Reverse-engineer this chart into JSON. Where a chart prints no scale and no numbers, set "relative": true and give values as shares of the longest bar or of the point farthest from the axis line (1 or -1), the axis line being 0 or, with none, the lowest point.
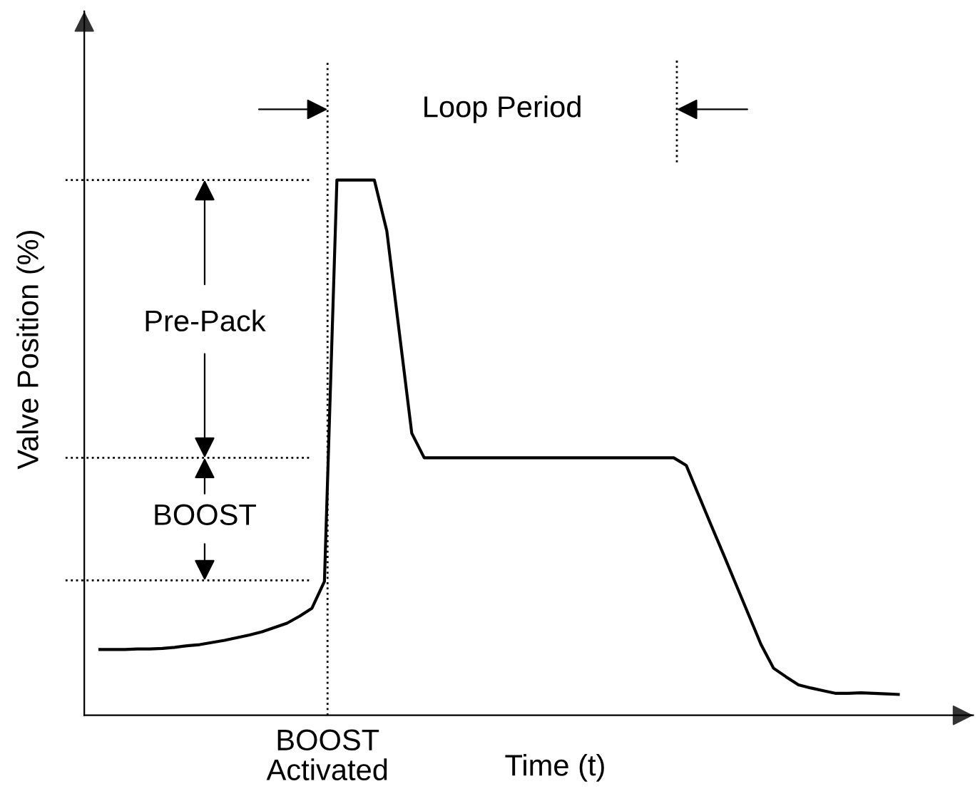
{
  "chart_data": {
    "type": "line",
    "relative": true,
    "xlabel": "Time (t)",
    "ylabel": "Valve Position (%)",
    "categories": [
      null,
      null,
      null,
      null,
      null,
      null,
      null,
      null,
      null,
      null,
      null,
      null,
      null,
      null,
      null,
      null,
      null,
      null,
      null,
      null,
      null,
      null,
      null,
      null,
      null,
      null,
      null,
      null,
      null,
      null,
      null,
      null,
      null,
      null,
      null,
      null,
      null,
      null,
      null,
      null,
      null,
      null,
      null,
      null,
      null,
      null,
      null,
      null,
      null,
      null,
      null,
      null,
      null,
      null,
      null,
      null,
      null,
      null,
      null,
      null,
      null,
      null,
      null,
      null,
      null
    ],
    "series": [
      {
        "color": "#000000",
        "values": [
          0.123,
          0.123,
          0.123,
          0.124,
          0.124,
          0.125,
          0.127,
          0.13,
          0.132,
          0.136,
          0.14,
          0.145,
          0.15,
          0.156,
          0.164,
          0.172,
          0.185,
          0.2,
          0.25,
          1,
          1,
          1,
          1,
          0.905,
          0.716,
          0.527,
          0.481,
          0.481,
          0.481,
          0.481,
          0.481,
          0.481,
          0.481,
          0.481,
          0.481,
          0.481,
          0.481,
          0.481,
          0.481,
          0.481,
          0.481,
          0.481,
          0.481,
          0.481,
          0.481,
          0.481,
          0.481,
          0.467,
          0.411,
          0.355,
          0.3,
          0.244,
          0.188,
          0.132,
          0.088,
          0.072,
          0.057,
          0.051,
          0.046,
          0.041,
          0.041,
          0.042,
          0.041,
          0.04,
          0.039
        ]
      }
    ],
    "annotations": [
      "Loop Period",
      "Pre-Pack",
      "BOOST",
      "BOOST Activated"
    ],
    "ref_lines": [
      {
        "axis": "y",
        "value": 1,
        "color": "#000000",
        "line_style": "dotted"
      },
      {
        "axis": "y",
        "value": 0.481,
        "color": "#000000",
        "line_style": "dotted"
      },
      {
        "axis": "y",
        "value": 0.252,
        "color": "#000000",
        "line_style": "dotted"
      }
    ],
    "legend": false,
    "marker": "none",
    "line_style": "solid"
  }
}
